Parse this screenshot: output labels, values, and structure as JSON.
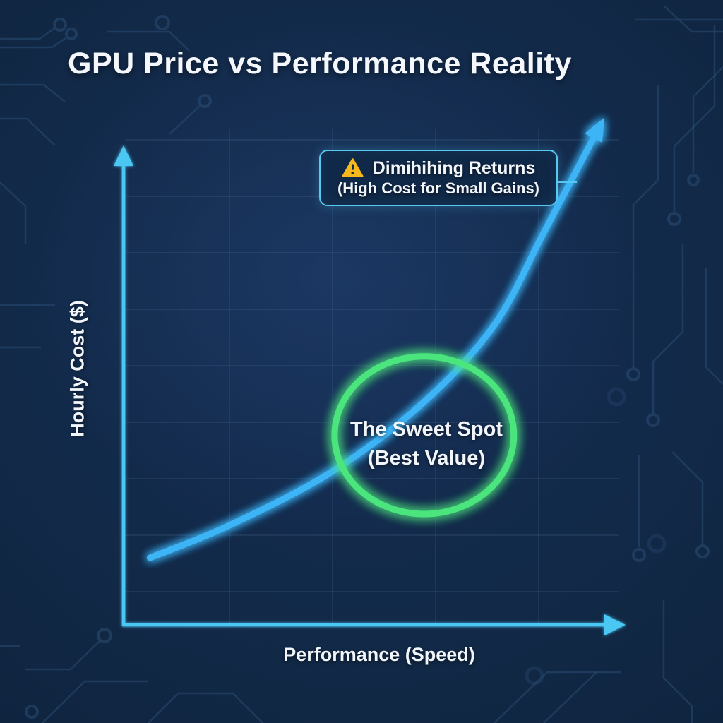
{
  "page_title": "GPU Price vs Performance Reality",
  "chart_data": {
    "type": "line",
    "title": "GPU Price vs Performance Reality",
    "xlabel": "Performance (Speed)",
    "ylabel": "Hourly Cost ($)",
    "axes_qualitative": true,
    "tick_labels": "none",
    "grid": true,
    "legend": "none",
    "x_range_normalized": [
      0,
      1
    ],
    "y_range_normalized": [
      0,
      1
    ],
    "series": [
      {
        "name": "hourly-cost-vs-performance-curve",
        "style": "smooth glowing blue line with arrowhead at end",
        "x": [
          0.053,
          0.213,
          0.418,
          0.603,
          0.745,
          0.844,
          0.954
        ],
        "y": [
          0.132,
          0.196,
          0.301,
          0.438,
          0.59,
          0.771,
          0.976
        ]
      }
    ],
    "annotations": [
      {
        "kind": "callout-box",
        "icon": "warning-triangle",
        "line1": "Dimihihing Returns",
        "line2": "(High Cost for Small Gains)",
        "anchor_normalized": {
          "x": 0.9,
          "y": 0.87
        }
      },
      {
        "kind": "highlight-circle",
        "line1": "The Sweet Spot",
        "line2": "(Best Value)",
        "center_normalized": {
          "x": 0.604,
          "y": 0.373
        },
        "radius_normalized": {
          "rx": 0.18,
          "ry": 0.155
        }
      }
    ]
  },
  "colors": {
    "background_center": "#142c50",
    "background_edge": "#081626",
    "title_text": "#f4f7fb",
    "axis_cyan": "#4cc7f4",
    "curve_blue": "#3db4f6",
    "gridline": "#6f96c0",
    "sweet_spot_green": "#4ce57e",
    "callout_border": "#56c8f2",
    "callout_background": "rgba(16,40,70,0.88)",
    "warning_yellow": "#f7b81e",
    "circuit_trace": "#2b4f78"
  },
  "icons": {
    "warning": "warning-triangle-icon",
    "curve_arrow": "arrowhead-icon",
    "axis_arrows": "arrowhead-icon"
  }
}
